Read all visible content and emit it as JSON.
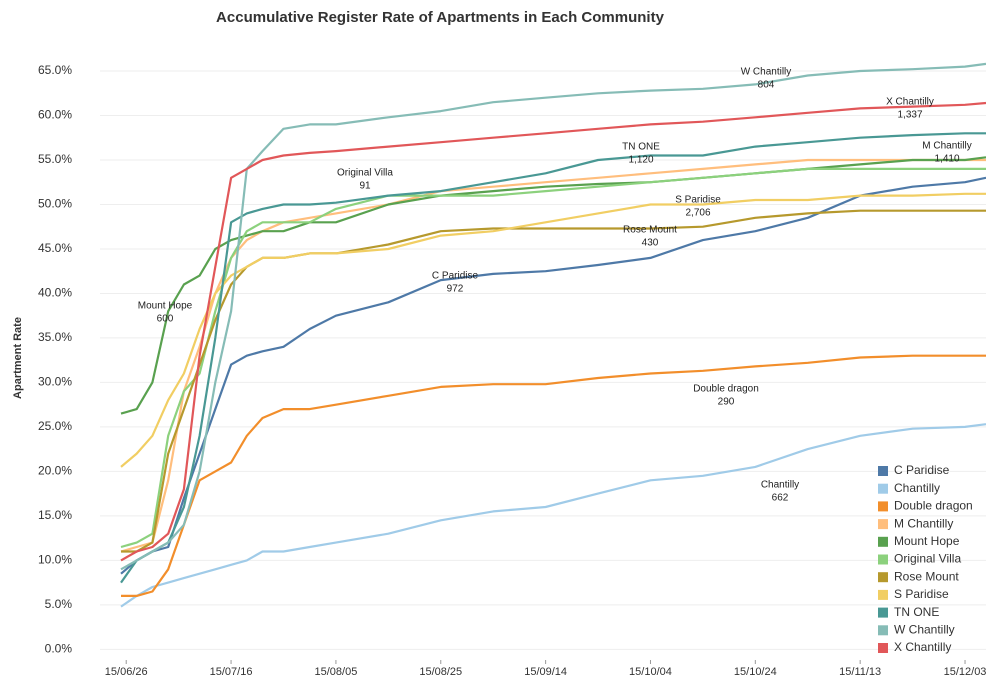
{
  "chart_data": {
    "type": "line",
    "title": "Accumulative Register Rate of Apartments in Each Community",
    "ylabel": "Apartment Rate",
    "x": [
      "15/06/25",
      "15/06/28",
      "15/07/01",
      "15/07/04",
      "15/07/07",
      "15/07/10",
      "15/07/13",
      "15/07/16",
      "15/07/19",
      "15/07/22",
      "15/07/26",
      "15/07/31",
      "15/08/05",
      "15/08/15",
      "15/08/25",
      "15/09/04",
      "15/09/14",
      "15/09/24",
      "15/10/04",
      "15/10/14",
      "15/10/24",
      "15/11/03",
      "15/11/13",
      "15/11/23",
      "15/12/03",
      "15/12/07"
    ],
    "xlim": [
      "15/06/21",
      "15/12/07"
    ],
    "xticks": [
      "15/06/26",
      "15/07/16",
      "15/08/05",
      "15/08/25",
      "15/09/14",
      "15/10/04",
      "15/10/24",
      "15/11/13",
      "15/12/03"
    ],
    "ylim": [
      -1.2,
      66.8
    ],
    "yticks": [
      {
        "value": 0,
        "label": "0.0%"
      },
      {
        "value": 5,
        "label": "5.0%"
      },
      {
        "value": 10,
        "label": "10.0%"
      },
      {
        "value": 15,
        "label": "15.0%"
      },
      {
        "value": 20,
        "label": "20.0%"
      },
      {
        "value": 25,
        "label": "25.0%"
      },
      {
        "value": 30,
        "label": "30.0%"
      },
      {
        "value": 35,
        "label": "35.0%"
      },
      {
        "value": 40,
        "label": "40.0%"
      },
      {
        "value": 45,
        "label": "45.0%"
      },
      {
        "value": 50,
        "label": "50.0%"
      },
      {
        "value": 55,
        "label": "55.0%"
      },
      {
        "value": 60,
        "label": "60.0%"
      },
      {
        "value": 65,
        "label": "65.0%"
      }
    ],
    "grid": true,
    "legend": "lower right",
    "series": [
      {
        "name": "C Paridise",
        "color": "#4e79a7",
        "values": [
          8.5,
          10,
          11,
          11.5,
          17,
          22,
          27,
          32,
          33,
          33.5,
          34,
          36,
          37.5,
          39,
          41.5,
          42.2,
          42.5,
          43.2,
          44,
          46,
          47,
          48.5,
          51,
          52,
          52.5,
          53
        ]
      },
      {
        "name": "Chantilly",
        "color": "#a0cbe8",
        "values": [
          4.8,
          6,
          7,
          7.5,
          8,
          8.5,
          9,
          9.5,
          10,
          11,
          11,
          11.5,
          12,
          13,
          14.5,
          15.5,
          16,
          17.5,
          19,
          19.5,
          20.5,
          22.5,
          24,
          24.8,
          25,
          25.3
        ]
      },
      {
        "name": "Double dragon",
        "color": "#f28e2b",
        "values": [
          6,
          6,
          6.5,
          9,
          14,
          19,
          20,
          21,
          24,
          26,
          27,
          27,
          27.5,
          28.5,
          29.5,
          29.8,
          29.8,
          30.5,
          31,
          31.3,
          31.8,
          32.2,
          32.8,
          33,
          33,
          33
        ]
      },
      {
        "name": "M Chantilly",
        "color": "#ffbe7d",
        "values": [
          11,
          11.5,
          12,
          19,
          29,
          34,
          40,
          44,
          46,
          47,
          48,
          48.5,
          49,
          50,
          51.5,
          52,
          52.5,
          53,
          53.5,
          54,
          54.5,
          55,
          55,
          55,
          55,
          55
        ]
      },
      {
        "name": "Mount Hope",
        "color": "#59a14f",
        "values": [
          26.5,
          27,
          30,
          38,
          41,
          42,
          45,
          46,
          46.5,
          47,
          47,
          48,
          48,
          50,
          51,
          51.5,
          52,
          52.3,
          52.5,
          53,
          53.5,
          54,
          54.5,
          55,
          55,
          55.3
        ]
      },
      {
        "name": "Original Villa",
        "color": "#8cd17d",
        "values": [
          11.5,
          12,
          13,
          24,
          29,
          31,
          38,
          44,
          47,
          48,
          48,
          48,
          49.5,
          51,
          51,
          51,
          51.5,
          52,
          52.5,
          53,
          53.5,
          54,
          54,
          54,
          54,
          54
        ]
      },
      {
        "name": "Rose Mount",
        "color": "#b6992d",
        "values": [
          11,
          11,
          12,
          22,
          27,
          32,
          37,
          41,
          43,
          44,
          44,
          44.5,
          44.5,
          45.5,
          47,
          47.3,
          47.3,
          47.3,
          47.3,
          47.5,
          48.5,
          49,
          49.3,
          49.3,
          49.3,
          49.3
        ]
      },
      {
        "name": "S Paridise",
        "color": "#f1ce63",
        "values": [
          20.5,
          22,
          24,
          28,
          31,
          36,
          40,
          42,
          43,
          44,
          44,
          44.5,
          44.5,
          45,
          46.5,
          47,
          48,
          49,
          50,
          50,
          50.5,
          50.5,
          51,
          51,
          51.2,
          51.2
        ]
      },
      {
        "name": "TN ONE",
        "color": "#499894",
        "values": [
          7.5,
          10,
          11,
          12,
          16,
          24,
          35,
          48,
          49,
          49.5,
          50,
          50,
          50.2,
          51,
          51.5,
          52.5,
          53.5,
          55,
          55.5,
          55.5,
          56.5,
          57,
          57.5,
          57.8,
          58,
          58
        ]
      },
      {
        "name": "W Chantilly",
        "color": "#86bcb6",
        "values": [
          9,
          10,
          11,
          12,
          14,
          20,
          30,
          38,
          54,
          56,
          58.5,
          59,
          59,
          59.8,
          60.5,
          61.5,
          62,
          62.5,
          62.8,
          63,
          63.5,
          64.5,
          65,
          65.2,
          65.5,
          65.8
        ]
      },
      {
        "name": "X Chantilly",
        "color": "#e15759",
        "values": [
          10,
          11,
          11.5,
          13,
          18,
          33,
          43,
          53,
          54,
          55,
          55.5,
          55.8,
          56,
          56.5,
          57,
          57.5,
          58,
          58.5,
          59,
          59.3,
          59.8,
          60.3,
          60.8,
          61,
          61.2,
          61.4
        ]
      }
    ],
    "annotations": [
      {
        "text": "Mount Hope",
        "value": 600
      },
      {
        "text": "Original Villa",
        "value": 91
      },
      {
        "text": "TN ONE",
        "value": 1120,
        "label": "1,120"
      },
      {
        "text": "W Chantilly",
        "value": 804
      },
      {
        "text": "X Chantilly",
        "value": 1337,
        "label": "1,337"
      },
      {
        "text": "M Chantilly",
        "value": 1410,
        "label": "1,410"
      },
      {
        "text": "S Paridise",
        "value": 2706,
        "label": "2,706"
      },
      {
        "text": "Rose Mount",
        "value": 430
      },
      {
        "text": "C Paridise",
        "value": 972
      },
      {
        "text": "Double dragon",
        "value": 290
      },
      {
        "text": "Chantilly",
        "value": 662
      }
    ]
  }
}
